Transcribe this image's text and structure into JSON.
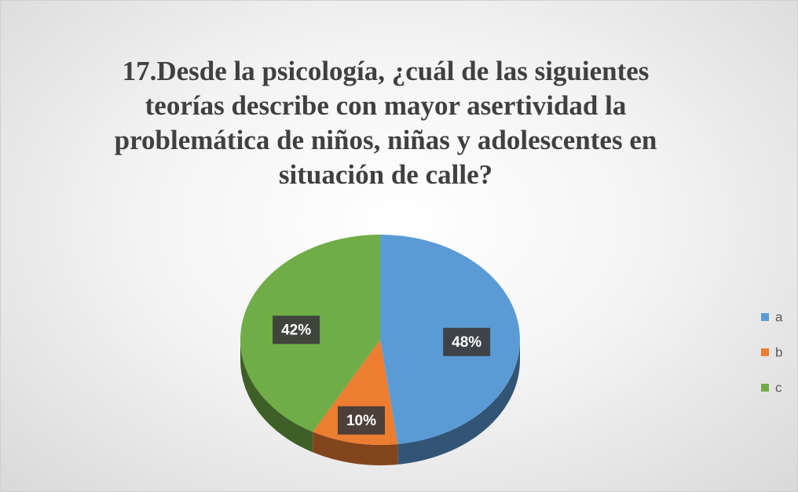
{
  "chart_data": {
    "type": "pie",
    "title": "17.Desde la psicología, ¿cuál de las siguientes teorías describe con mayor asertividad la problemática de niños, niñas y adolescentes en situación de calle?",
    "categories": [
      "a",
      "b",
      "c"
    ],
    "values": [
      48,
      10,
      42
    ],
    "value_labels": [
      "48%",
      "10%",
      "42%"
    ],
    "colors": [
      "#5b9bd5",
      "#ed7d31",
      "#70ad47"
    ],
    "legend": "right"
  }
}
